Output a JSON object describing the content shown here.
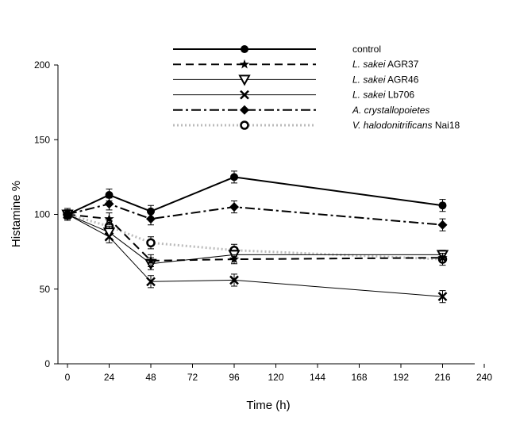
{
  "chart_data": {
    "type": "line",
    "title": "",
    "xlabel": "Time (h)",
    "ylabel": "Histamine %",
    "xlim": [
      0,
      240
    ],
    "ylim": [
      0,
      200
    ],
    "xticks": [
      "0",
      "24",
      "48",
      "72",
      "96",
      "120",
      "144",
      "168",
      "192",
      "216",
      "240"
    ],
    "yticks": [
      "0",
      "50",
      "100",
      "150",
      "200"
    ],
    "grid": false,
    "legend_position": "top",
    "x": [
      0,
      24,
      48,
      96,
      216
    ],
    "series": [
      {
        "name": "control",
        "legend_parts": [
          {
            "text": "control",
            "italic": false
          }
        ],
        "marker": "filled-circle",
        "line_style": "solid",
        "line_color": "#000000",
        "line_width": 2,
        "values": [
          100,
          113,
          102,
          125,
          106
        ],
        "errors": [
          4,
          4,
          4,
          4,
          4
        ]
      },
      {
        "name": "L. sakei AGR37",
        "legend_parts": [
          {
            "text": "L. sakei",
            "italic": true
          },
          {
            "text": " AGR37",
            "italic": false
          }
        ],
        "marker": "star",
        "line_style": "dashed",
        "line_color": "#000000",
        "line_width": 2,
        "values": [
          100,
          97,
          69,
          70,
          71
        ],
        "errors": [
          3,
          4,
          4,
          3,
          3
        ]
      },
      {
        "name": "L. sakei AGR46",
        "legend_parts": [
          {
            "text": "L. sakei",
            "italic": true
          },
          {
            "text": " AGR46",
            "italic": false
          }
        ],
        "marker": "open-triangle-down",
        "line_style": "solid",
        "line_color": "#000000",
        "line_width": 1,
        "values": [
          100,
          88,
          67,
          73,
          73
        ],
        "errors": [
          3,
          4,
          4,
          3,
          3
        ]
      },
      {
        "name": "L. sakei Lb706",
        "legend_parts": [
          {
            "text": "L. sakei",
            "italic": true
          },
          {
            "text": " Lb706",
            "italic": false
          }
        ],
        "marker": "x",
        "line_style": "solid",
        "line_color": "#000000",
        "line_width": 1,
        "values": [
          100,
          85,
          55,
          56,
          45
        ],
        "errors": [
          3,
          4,
          4,
          4,
          4
        ]
      },
      {
        "name": "A. crystallopoietes",
        "legend_parts": [
          {
            "text": "A. crystallopoietes",
            "italic": true
          }
        ],
        "marker": "filled-diamond",
        "line_style": "dash-dot",
        "line_color": "#000000",
        "line_width": 2,
        "values": [
          100,
          107,
          97,
          105,
          93
        ],
        "errors": [
          3,
          4,
          4,
          4,
          4
        ]
      },
      {
        "name": "V. halodonitrificans Nai18",
        "legend_parts": [
          {
            "text": "V. halodonitrificans",
            "italic": true
          },
          {
            "text": " Nai18",
            "italic": false
          }
        ],
        "marker": "open-circle-dot",
        "line_style": "dotted",
        "line_color": "#bbbbbb",
        "line_width": 3,
        "values": [
          100,
          92,
          81,
          76,
          70
        ],
        "errors": [
          3,
          4,
          4,
          4,
          4
        ]
      }
    ]
  }
}
